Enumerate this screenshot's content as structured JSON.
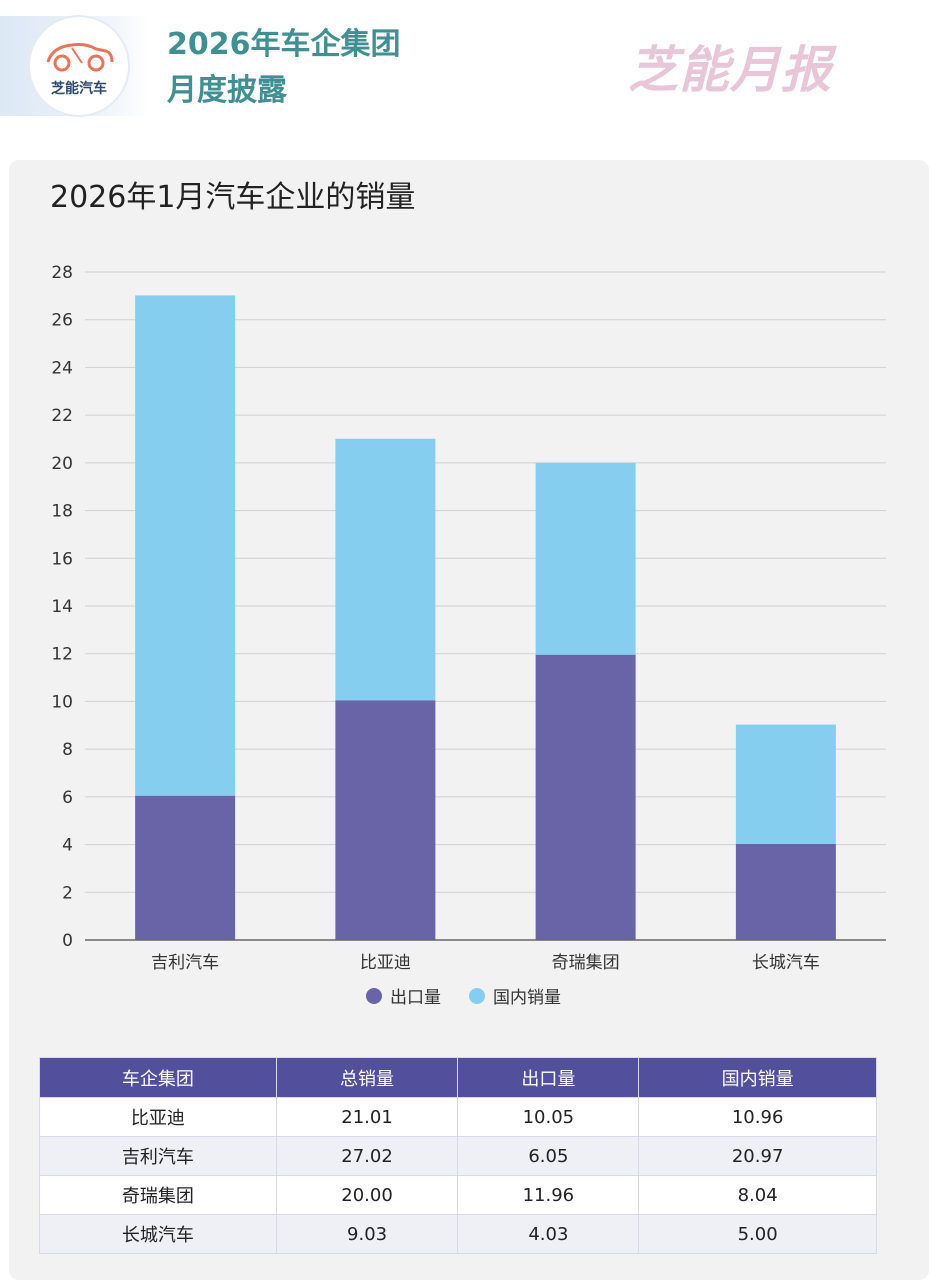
{
  "header": {
    "logo_text": "芝能汽车",
    "title_line1": "2026年车企集团",
    "title_line2": "月度披露",
    "brand_text": "芝能月报"
  },
  "colors": {
    "export": "#6964a8",
    "domestic": "#86ceef",
    "header_title": "#3f8f93",
    "table_header": "#524f9c",
    "brand": "#e8c6d8"
  },
  "chart_data": {
    "type": "bar",
    "stacked": true,
    "title": "2026年1月汽车企业的销量",
    "categories": [
      "吉利汽车",
      "比亚迪",
      "奇瑞集团",
      "长城汽车"
    ],
    "series": [
      {
        "name": "出口量",
        "values": [
          6.05,
          10.05,
          11.96,
          4.03
        ]
      },
      {
        "name": "国内销量",
        "values": [
          20.97,
          10.96,
          8.04,
          5.0
        ]
      }
    ],
    "xlabel": "",
    "ylabel": "",
    "ylim": [
      0,
      28
    ],
    "yticks": [
      0,
      2,
      4,
      6,
      8,
      10,
      12,
      14,
      16,
      18,
      20,
      22,
      24,
      26,
      28
    ],
    "grid": true,
    "legend": "bottom"
  },
  "table": {
    "headers": [
      "车企集团",
      "总销量",
      "出口量",
      "国内销量"
    ],
    "rows": [
      [
        "比亚迪",
        "21.01",
        "10.05",
        "10.96"
      ],
      [
        "吉利汽车",
        "27.02",
        "6.05",
        "20.97"
      ],
      [
        "奇瑞集团",
        "20.00",
        "11.96",
        "8.04"
      ],
      [
        "长城汽车",
        "9.03",
        "4.03",
        "5.00"
      ]
    ]
  }
}
